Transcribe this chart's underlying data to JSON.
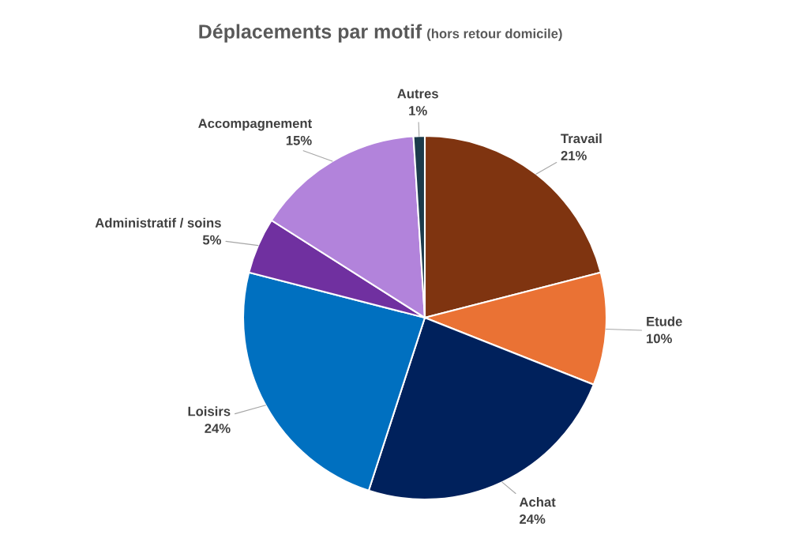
{
  "chart_data": {
    "type": "pie",
    "title": "Déplacements par motif",
    "subtitle": "(hors retour domicile)",
    "categories": [
      "Travail",
      "Etude",
      "Achat",
      "Loisirs",
      "Administratif / soins",
      "Accompagnement",
      "Autres"
    ],
    "values": [
      21,
      10,
      24,
      24,
      5,
      15,
      1
    ],
    "value_labels": [
      "21%",
      "10%",
      "24%",
      "24%",
      "5%",
      "15%",
      "1%"
    ],
    "colors": [
      "#7f3410",
      "#ea7234",
      "#00215c",
      "#0070c0",
      "#7030a0",
      "#b283db",
      "#1b3b4b"
    ]
  }
}
